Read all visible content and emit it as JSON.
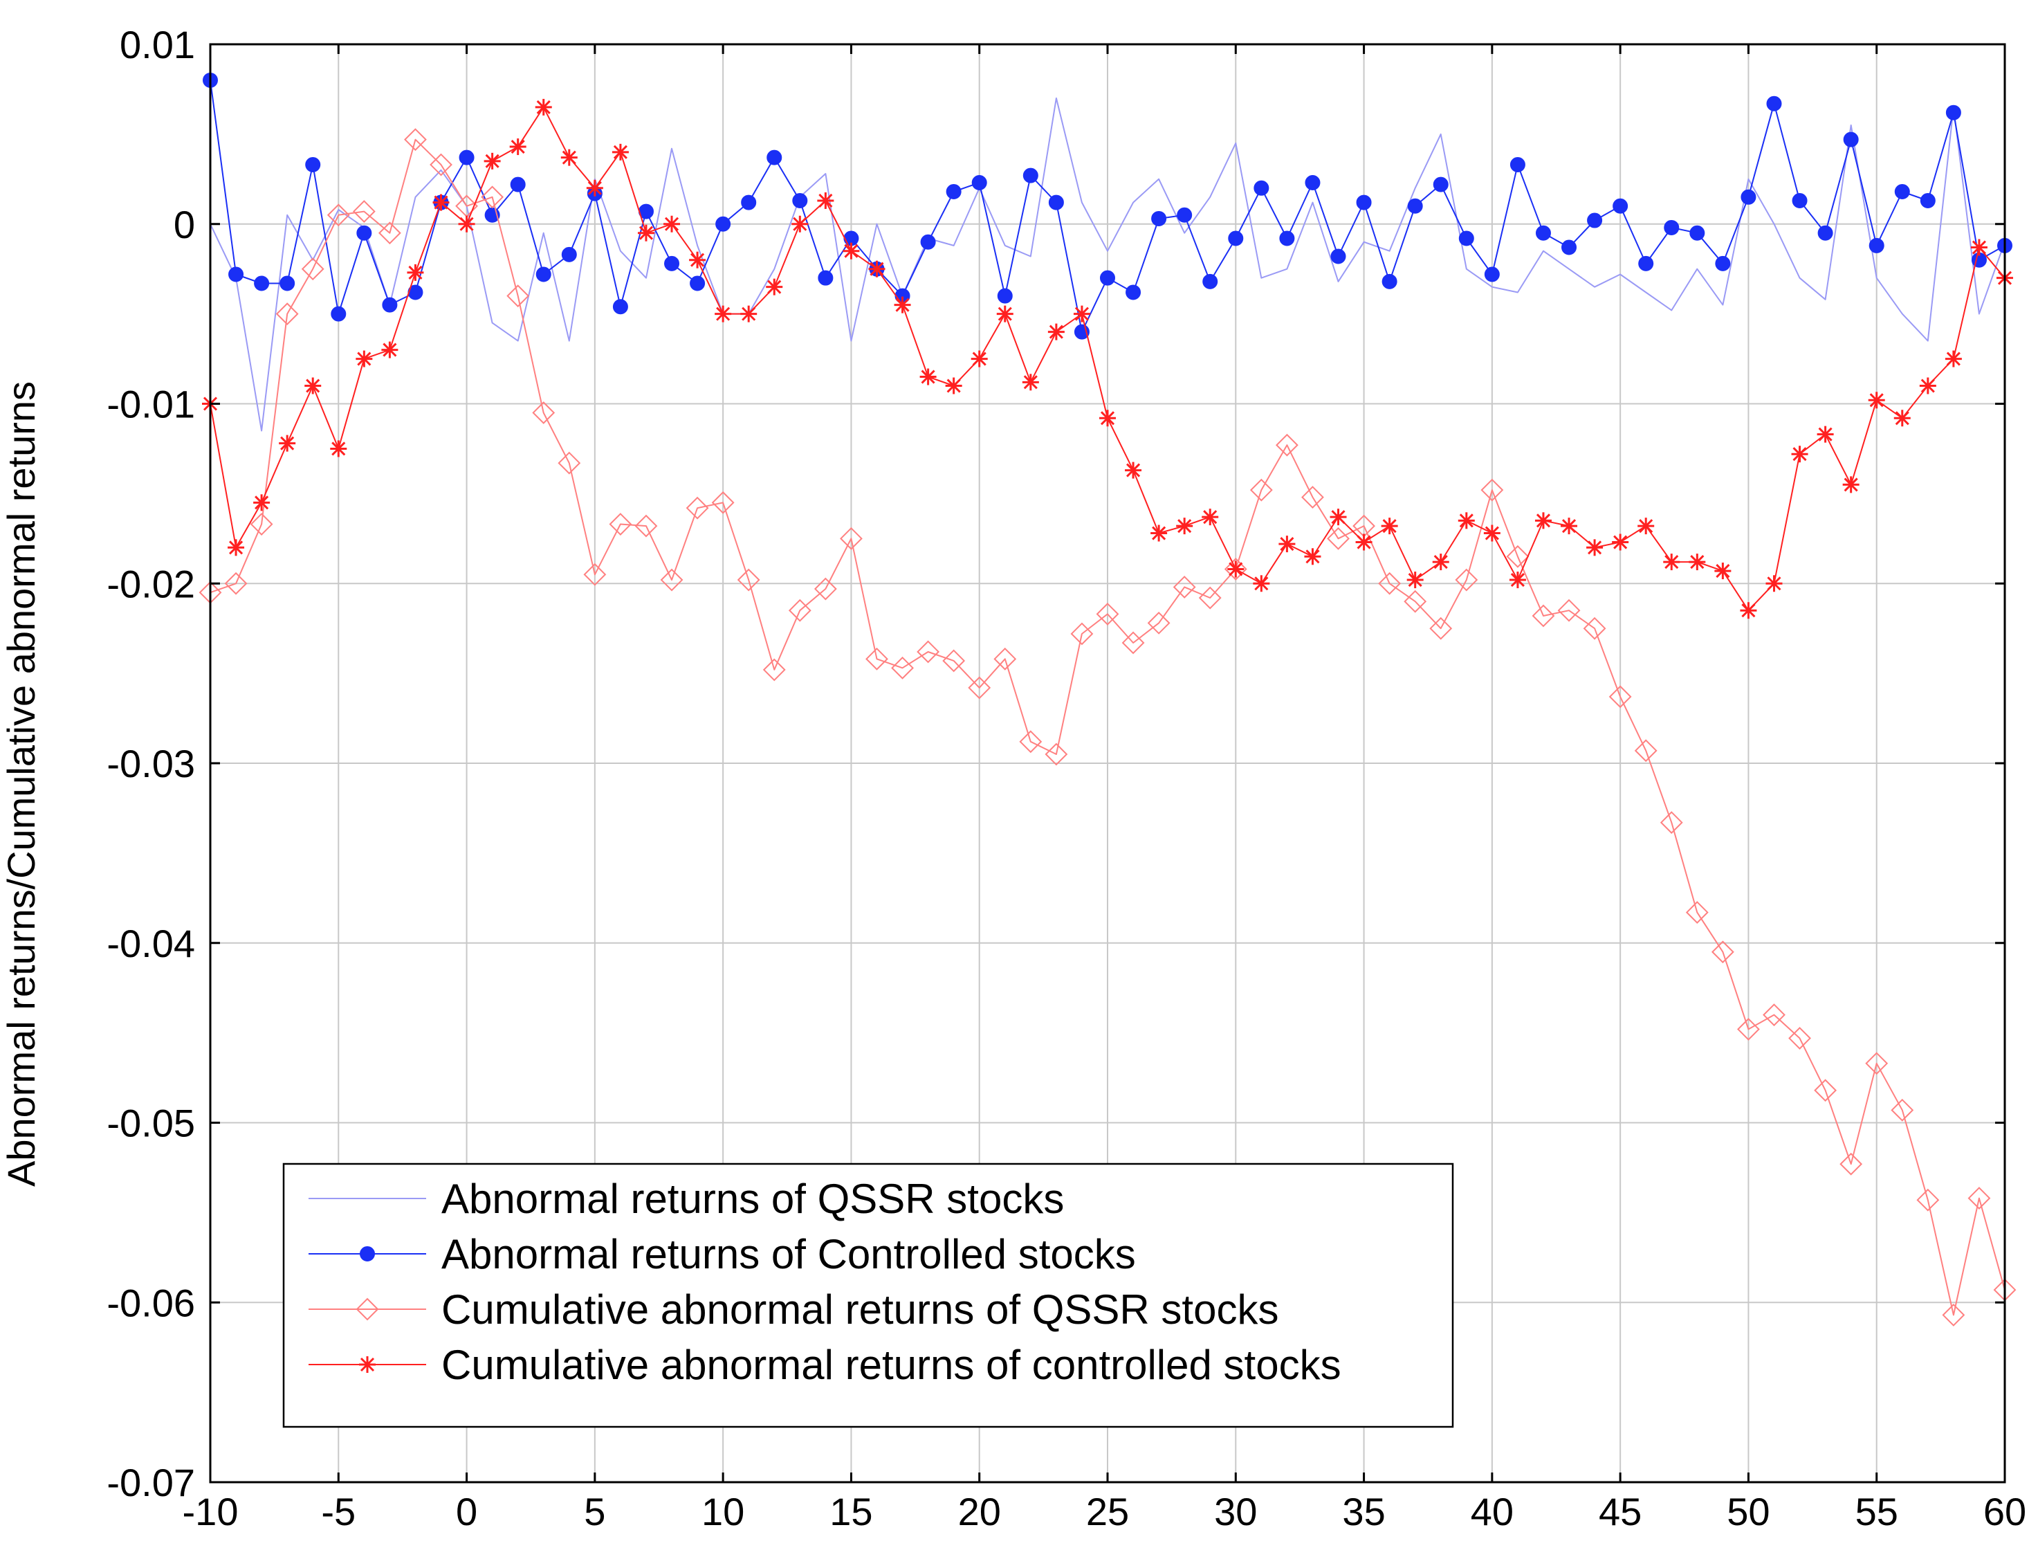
{
  "chart_data": {
    "type": "line",
    "title": "",
    "xlabel": "",
    "ylabel": "Abnormal returns/Cumulative abnormal returns",
    "xlim": [
      -10,
      60
    ],
    "ylim": [
      -0.07,
      0.01
    ],
    "grid": true,
    "legend_position": "bottom-left",
    "x_ticks": [
      -10,
      -5,
      0,
      5,
      10,
      15,
      20,
      25,
      30,
      35,
      40,
      45,
      50,
      55,
      60
    ],
    "x_tick_labels": [
      "-10",
      "-5",
      "0",
      "5",
      "10",
      "15",
      "20",
      "25",
      "30",
      "35",
      "40",
      "45",
      "50",
      "55",
      "60"
    ],
    "y_ticks": [
      -0.07,
      -0.06,
      -0.05,
      -0.04,
      -0.03,
      -0.02,
      -0.01,
      0,
      0.01
    ],
    "y_tick_labels": [
      "-0.07",
      "-0.06",
      "-0.05",
      "-0.04",
      "-0.03",
      "-0.02",
      "-0.01",
      "0",
      "0.01"
    ],
    "x": [
      -10,
      -9,
      -8,
      -7,
      -6,
      -5,
      -4,
      -3,
      -2,
      -1,
      0,
      1,
      2,
      3,
      4,
      5,
      6,
      7,
      8,
      9,
      10,
      11,
      12,
      13,
      14,
      15,
      16,
      17,
      18,
      19,
      20,
      21,
      22,
      23,
      24,
      25,
      26,
      27,
      28,
      29,
      30,
      31,
      32,
      33,
      34,
      35,
      36,
      37,
      38,
      39,
      40,
      41,
      42,
      43,
      44,
      45,
      46,
      47,
      48,
      49,
      50,
      51,
      52,
      53,
      54,
      55,
      56,
      57,
      58,
      59,
      60
    ],
    "series": [
      {
        "name": "Abnormal returns of QSSR stocks",
        "color": "#9a9af5",
        "marker": "none",
        "values": [
          0.0,
          -0.003,
          -0.0115,
          0.0005,
          -0.002,
          0.0008,
          -0.0002,
          -0.0045,
          0.0015,
          0.003,
          0.001,
          -0.0055,
          -0.0065,
          -0.0005,
          -0.0065,
          0.0025,
          -0.0015,
          -0.003,
          0.0042,
          -0.0012,
          -0.005,
          -0.005,
          -0.0025,
          0.0015,
          0.0028,
          -0.0065,
          0.0,
          -0.004,
          -0.0008,
          -0.0012,
          0.002,
          -0.0012,
          -0.0018,
          0.007,
          0.0012,
          -0.0015,
          0.0012,
          0.0025,
          -0.0005,
          0.0015,
          0.0045,
          -0.003,
          -0.0025,
          0.0012,
          -0.0032,
          -0.001,
          -0.0015,
          0.002,
          0.005,
          -0.0025,
          -0.0035,
          -0.0038,
          -0.0015,
          -0.0025,
          -0.0035,
          -0.0028,
          -0.0038,
          -0.0048,
          -0.0025,
          -0.0045,
          0.0025,
          0.0,
          -0.003,
          -0.0042,
          0.0055,
          -0.003,
          -0.005,
          -0.0065,
          0.0065,
          -0.005,
          -0.001
        ]
      },
      {
        "name": "Abnormal returns of Controlled stocks",
        "color": "#1a2ff5",
        "marker": "dot",
        "values": [
          0.008,
          -0.0028,
          -0.0033,
          -0.0033,
          0.0033,
          -0.005,
          -0.0005,
          -0.0045,
          -0.0038,
          0.0012,
          0.0037,
          0.0005,
          0.0022,
          -0.0028,
          -0.0017,
          0.0017,
          -0.0046,
          0.0007,
          -0.0022,
          -0.0033,
          0.0,
          0.0012,
          0.0037,
          0.0013,
          -0.003,
          -0.0008,
          -0.0025,
          -0.004,
          -0.001,
          0.0018,
          0.0023,
          -0.004,
          0.0027,
          0.0012,
          -0.006,
          -0.003,
          -0.0038,
          0.0003,
          0.0005,
          -0.0032,
          -0.0008,
          0.002,
          -0.0008,
          0.0023,
          -0.0018,
          0.0012,
          -0.0032,
          0.001,
          0.0022,
          -0.0008,
          -0.0028,
          0.0033,
          -0.0005,
          -0.0013,
          0.0002,
          0.001,
          -0.0022,
          -0.0002,
          -0.0005,
          -0.0022,
          0.0015,
          0.0067,
          0.0013,
          -0.0005,
          0.0047,
          -0.0012,
          0.0018,
          0.0013,
          0.0062,
          -0.002,
          -0.0012
        ]
      },
      {
        "name": "Cumulative abnormal returns of QSSR stocks",
        "color": "#ff8080",
        "marker": "diamond",
        "values": [
          -0.0205,
          -0.02,
          -0.0167,
          -0.005,
          -0.0025,
          0.0005,
          0.0007,
          -0.0005,
          0.0047,
          0.0033,
          0.001,
          0.0015,
          -0.004,
          -0.0105,
          -0.0133,
          -0.0195,
          -0.0167,
          -0.0168,
          -0.0198,
          -0.0158,
          -0.0155,
          -0.0198,
          -0.0248,
          -0.0215,
          -0.0203,
          -0.0175,
          -0.0242,
          -0.0247,
          -0.0238,
          -0.0243,
          -0.0258,
          -0.0242,
          -0.0288,
          -0.0295,
          -0.0228,
          -0.0217,
          -0.0233,
          -0.0222,
          -0.0202,
          -0.0208,
          -0.0192,
          -0.0148,
          -0.0123,
          -0.0152,
          -0.0175,
          -0.0168,
          -0.02,
          -0.021,
          -0.0225,
          -0.0198,
          -0.0148,
          -0.0185,
          -0.0218,
          -0.0215,
          -0.0225,
          -0.0263,
          -0.0293,
          -0.0333,
          -0.0383,
          -0.0405,
          -0.0448,
          -0.044,
          -0.0453,
          -0.0482,
          -0.0523,
          -0.0467,
          -0.0493,
          -0.0543,
          -0.0607,
          -0.0542,
          -0.0593
        ]
      },
      {
        "name": "Cumulative abnormal returns of controlled stocks",
        "color": "#ff2020",
        "marker": "star",
        "values": [
          -0.01,
          -0.018,
          -0.0155,
          -0.0122,
          -0.009,
          -0.0125,
          -0.0075,
          -0.007,
          -0.0027,
          0.0012,
          0.0,
          0.0035,
          0.0043,
          0.0065,
          0.0037,
          0.002,
          0.004,
          -0.0005,
          0.0,
          -0.002,
          -0.005,
          -0.005,
          -0.0035,
          0.0,
          0.0013,
          -0.0015,
          -0.0025,
          -0.0045,
          -0.0085,
          -0.009,
          -0.0075,
          -0.005,
          -0.0088,
          -0.006,
          -0.005,
          -0.0108,
          -0.0137,
          -0.0172,
          -0.0168,
          -0.0163,
          -0.0192,
          -0.02,
          -0.0178,
          -0.0185,
          -0.0163,
          -0.0177,
          -0.0168,
          -0.0198,
          -0.0188,
          -0.0165,
          -0.0172,
          -0.0198,
          -0.0165,
          -0.0168,
          -0.018,
          -0.0177,
          -0.0168,
          -0.0188,
          -0.0188,
          -0.0193,
          -0.0215,
          -0.02,
          -0.0128,
          -0.0117,
          -0.0145,
          -0.0098,
          -0.0108,
          -0.009,
          -0.0075,
          -0.0013,
          -0.003
        ]
      }
    ]
  }
}
